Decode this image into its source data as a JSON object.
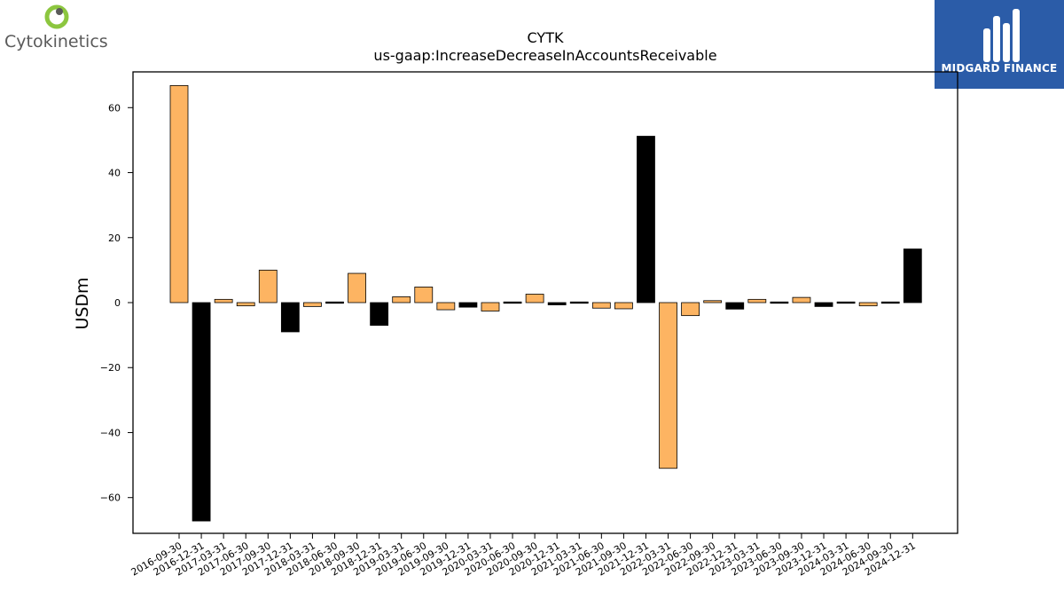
{
  "logos": {
    "left": {
      "name": "Cytokinetics",
      "accent": "#8cc63f",
      "text_color": "#5a5a5a"
    },
    "right": {
      "name": "MIDGARD FINANCE",
      "background": "#2b5ca8"
    }
  },
  "chart_data": {
    "type": "bar",
    "title": "CYTK",
    "subtitle": "us-gaap:IncreaseDecreaseInAccountsReceivable",
    "ylabel": "USDm",
    "xlabel": "",
    "ylim": [
      -71,
      71
    ],
    "yticks": [
      -60,
      -40,
      -20,
      0,
      20,
      40,
      60
    ],
    "categories": [
      "2016-09-30",
      "2016-12-31",
      "2017-03-31",
      "2017-06-30",
      "2017-09-30",
      "2017-12-31",
      "2018-03-31",
      "2018-06-30",
      "2018-09-30",
      "2018-12-31",
      "2019-03-31",
      "2019-06-30",
      "2019-09-30",
      "2019-12-31",
      "2020-03-31",
      "2020-06-30",
      "2020-09-30",
      "2020-12-31",
      "2021-03-31",
      "2021-06-30",
      "2021-09-30",
      "2021-12-31",
      "2022-03-31",
      "2022-06-30",
      "2022-09-30",
      "2022-12-31",
      "2023-03-31",
      "2023-06-30",
      "2023-09-30",
      "2023-12-31",
      "2024-03-31",
      "2024-06-30",
      "2024-09-30",
      "2024-12-31"
    ],
    "values": [
      66.8,
      -67.2,
      1.0,
      -1.0,
      10.0,
      -9.0,
      -1.2,
      0.3,
      9.0,
      -7.0,
      1.8,
      4.8,
      -2.2,
      -1.4,
      -2.6,
      -0.4,
      2.6,
      -0.7,
      0.2,
      -1.7,
      -1.9,
      51.2,
      -51.0,
      -4.0,
      0.6,
      -2.0,
      1.0,
      0.1,
      1.6,
      -1.2,
      -0.4,
      -1.0,
      0.2,
      16.5
    ],
    "colors": {
      "orange": "#fdb462",
      "black": "#000000"
    },
    "bar_colors": [
      "orange",
      "black",
      "orange",
      "orange",
      "orange",
      "black",
      "orange",
      "black",
      "orange",
      "black",
      "orange",
      "orange",
      "orange",
      "black",
      "orange",
      "black",
      "orange",
      "black",
      "black",
      "orange",
      "orange",
      "black",
      "orange",
      "orange",
      "orange",
      "black",
      "orange",
      "black",
      "orange",
      "black",
      "black",
      "orange",
      "black",
      "black"
    ],
    "grid": false,
    "legend": "none"
  }
}
